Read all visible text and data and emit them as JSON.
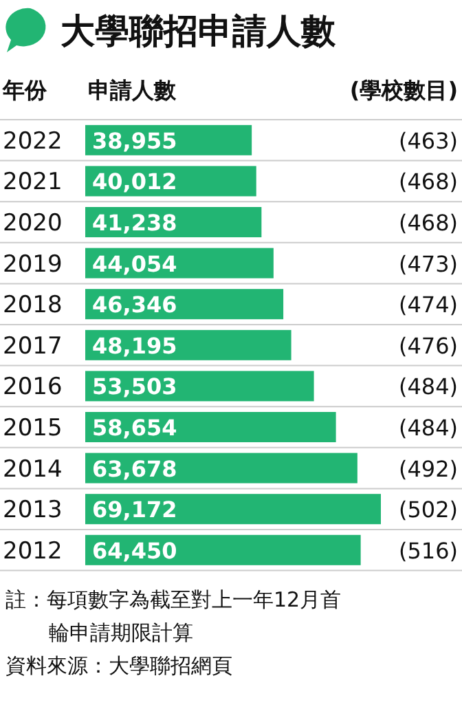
{
  "chart_data": {
    "type": "bar",
    "orientation": "horizontal",
    "title": "大學聯招申請人數",
    "ylabel": "年份",
    "xlabel": "申請人數",
    "y2label": "(學校數目)",
    "categories": [
      "2022",
      "2021",
      "2020",
      "2019",
      "2018",
      "2017",
      "2016",
      "2015",
      "2014",
      "2013",
      "2012"
    ],
    "values": [
      38955,
      40012,
      41238,
      44054,
      46346,
      48195,
      53503,
      58654,
      63678,
      69172,
      64450
    ],
    "value_labels": [
      "38,955",
      "40,012",
      "41,238",
      "44,054",
      "46,346",
      "48,195",
      "53,503",
      "58,654",
      "63,678",
      "69,172",
      "64,450"
    ],
    "color": "#22b573",
    "y2_categories": [
      "(463)",
      "(468)",
      "(468)",
      "(473)",
      "(474)",
      "(476)",
      "(484)",
      "(484)",
      "(492)",
      "(502)",
      "(516)"
    ],
    "annotations": [
      "註：每項數字為截至對上一年12月首輪申請期限計算",
      "資料來源：大學聯招網頁"
    ]
  }
}
